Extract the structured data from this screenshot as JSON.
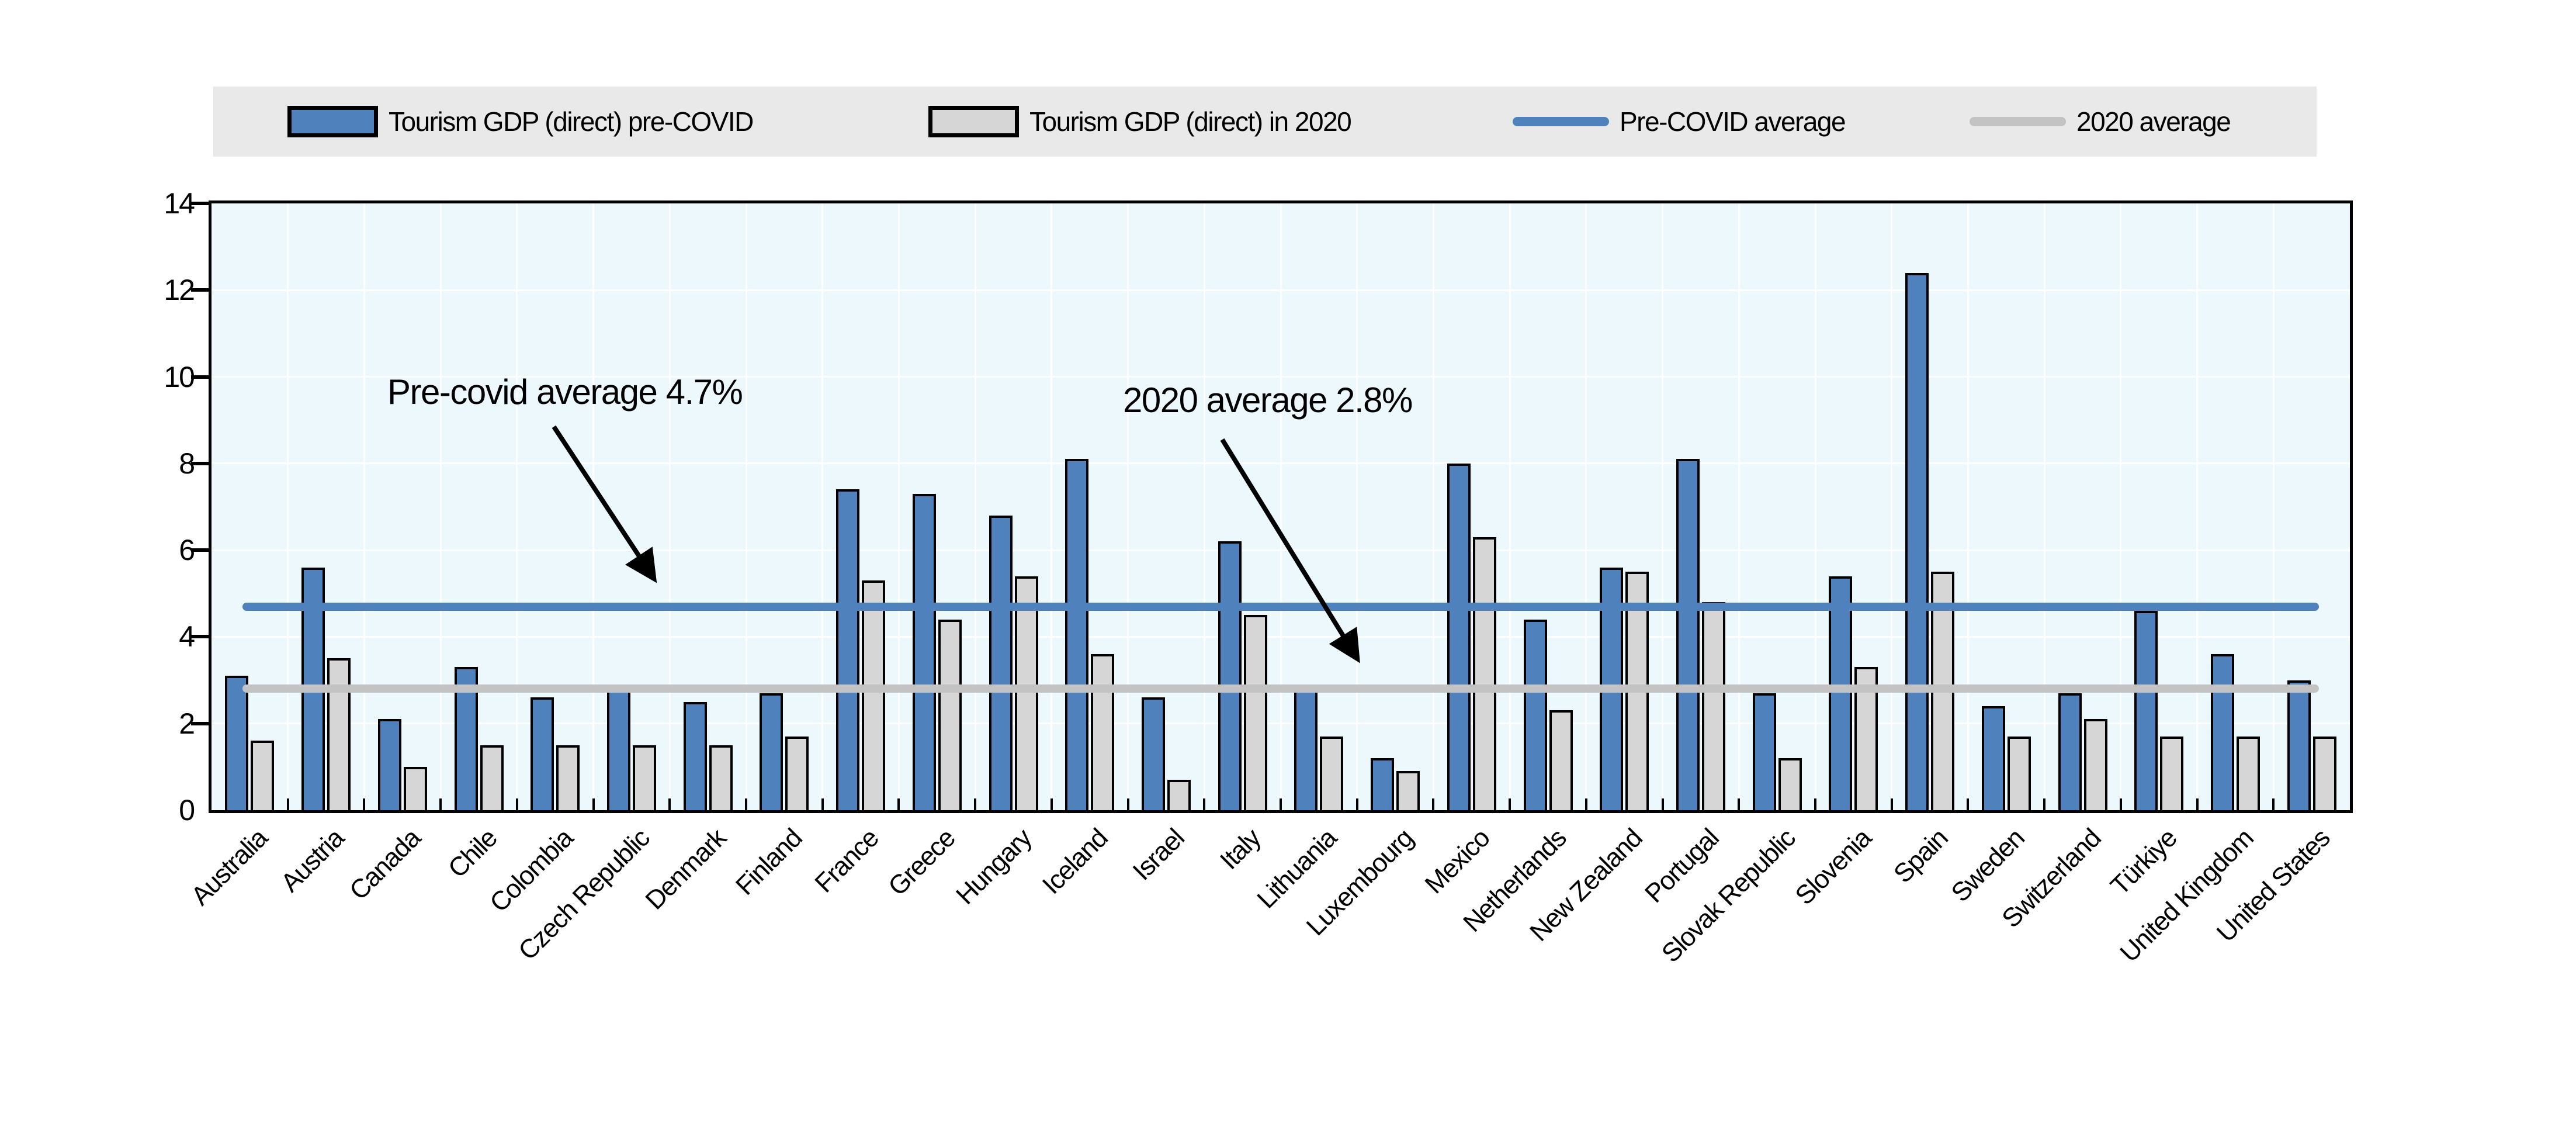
{
  "legend": {
    "background": "#E9E9E9",
    "items": [
      {
        "label": "Tourism GDP (direct) pre-COVID",
        "marker": "bar",
        "color": "#4F81BD"
      },
      {
        "label": "Tourism GDP (direct) in 2020",
        "marker": "bar",
        "color": "#D6D6D6"
      },
      {
        "label": "Pre-COVID average",
        "marker": "line",
        "color": "#4F81BD"
      },
      {
        "label": "2020 average",
        "marker": "line",
        "color": "#C3C3C3"
      }
    ]
  },
  "annotations": [
    {
      "text": "Pre-covid average 4.7%"
    },
    {
      "text": "2020 average 2.8%"
    }
  ],
  "chart_data": {
    "type": "bar",
    "title": "",
    "xlabel": "",
    "ylabel": "",
    "ylim": [
      0,
      14
    ],
    "y_ticks": [
      0,
      2,
      4,
      6,
      8,
      10,
      12,
      14
    ],
    "grid": "white horizontal lines every 2 units, white vertical lines at category boundaries",
    "legend_position": "top",
    "plot_background": "#ECF8FB",
    "categories": [
      "Australia",
      "Austria",
      "Canada",
      "Chile",
      "Colombia",
      "Czech Republic",
      "Denmark",
      "Finland",
      "France",
      "Greece",
      "Hungary",
      "Iceland",
      "Israel",
      "Italy",
      "Lithuania",
      "Luxembourg",
      "Mexico",
      "Netherlands",
      "New Zealand",
      "Portugal",
      "Slovak Republic",
      "Slovenia",
      "Spain",
      "Sweden",
      "Switzerland",
      "Türkiye",
      "United Kingdom",
      "United States"
    ],
    "series": [
      {
        "name": "Tourism GDP (direct) pre-COVID",
        "color": "#4F81BD",
        "values": [
          3.1,
          5.6,
          2.1,
          3.3,
          2.6,
          2.8,
          2.5,
          2.7,
          7.4,
          7.3,
          6.8,
          8.1,
          2.6,
          6.2,
          2.9,
          1.2,
          8.0,
          4.4,
          5.6,
          8.1,
          2.7,
          5.4,
          12.4,
          2.4,
          2.7,
          4.6,
          3.6,
          3.0
        ]
      },
      {
        "name": "Tourism GDP (direct) in 2020",
        "color": "#D6D6D6",
        "values": [
          1.6,
          3.5,
          1.0,
          1.5,
          1.5,
          1.5,
          1.5,
          1.7,
          5.3,
          4.4,
          5.4,
          3.6,
          0.7,
          4.5,
          1.7,
          0.9,
          6.3,
          2.3,
          5.5,
          4.8,
          1.2,
          3.3,
          5.5,
          1.7,
          2.1,
          1.7,
          1.7,
          1.7
        ]
      }
    ],
    "reference_lines": [
      {
        "name": "Pre-COVID average",
        "value": 4.7,
        "color": "#4F81BD"
      },
      {
        "name": "2020 average",
        "value": 2.8,
        "color": "#C3C3C3"
      }
    ]
  }
}
